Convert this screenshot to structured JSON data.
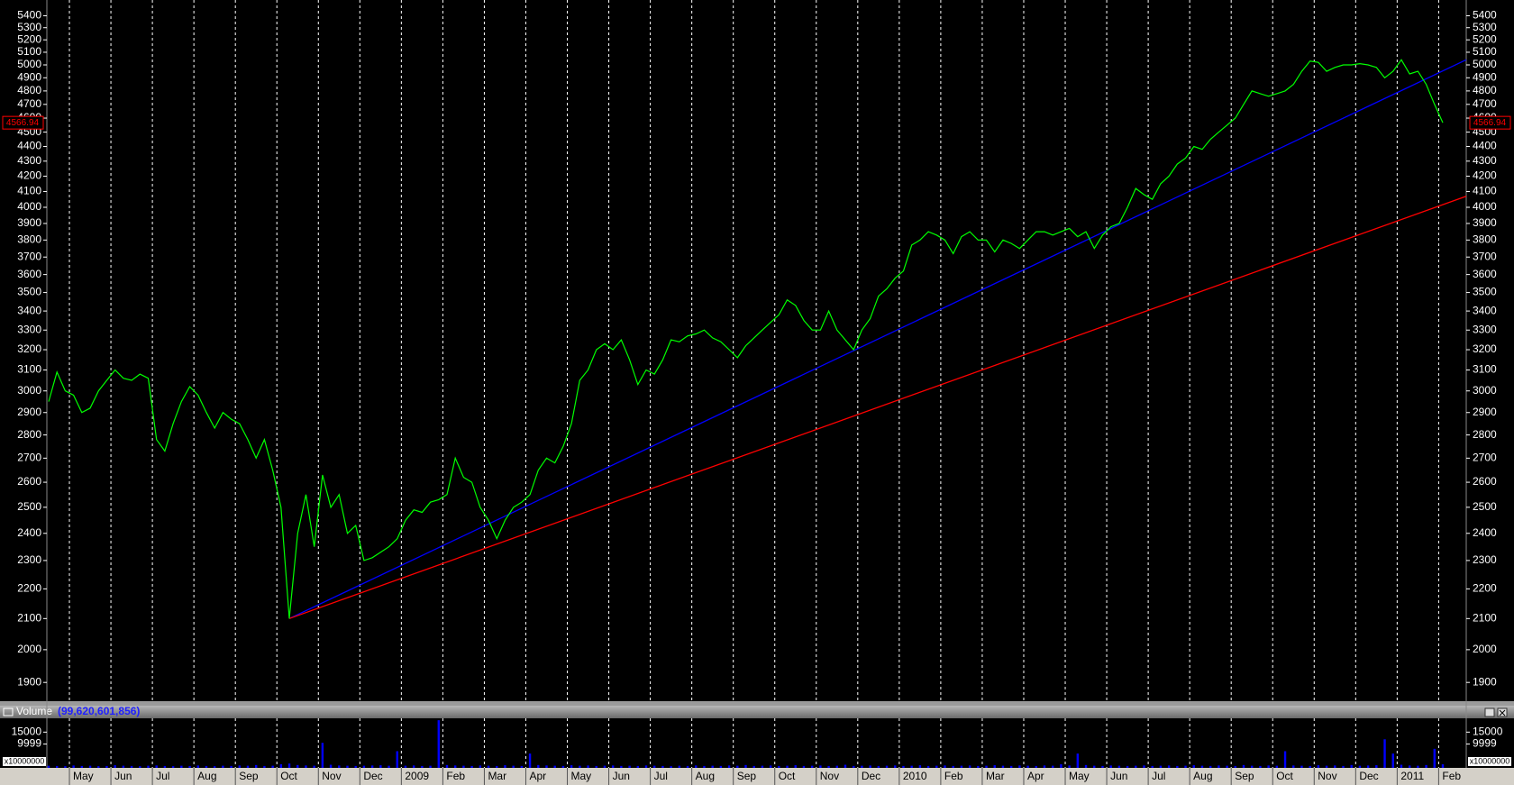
{
  "chart_data": {
    "type": "line",
    "log_scale": true,
    "color": "#00ff00",
    "background": "#000000",
    "categories": [
      null,
      null,
      null,
      "May",
      null,
      null,
      null,
      null,
      "Jun",
      null,
      null,
      null,
      null,
      "Jul",
      null,
      null,
      null,
      null,
      "Aug",
      null,
      null,
      null,
      null,
      "Sep",
      null,
      null,
      null,
      null,
      "Oct",
      null,
      null,
      null,
      null,
      "Nov",
      null,
      null,
      null,
      null,
      "Dec",
      null,
      null,
      null,
      null,
      "2009",
      null,
      null,
      null,
      null,
      "Feb",
      null,
      null,
      null,
      null,
      "Mar",
      null,
      null,
      null,
      null,
      "Apr",
      null,
      null,
      null,
      null,
      "May",
      null,
      null,
      null,
      null,
      "Jun",
      null,
      null,
      null,
      null,
      "Jul",
      null,
      null,
      null,
      null,
      "Aug",
      null,
      null,
      null,
      null,
      "Sep",
      null,
      null,
      null,
      null,
      "Oct",
      null,
      null,
      null,
      null,
      "Nov",
      null,
      null,
      null,
      null,
      "Dec",
      null,
      null,
      null,
      null,
      "2010",
      null,
      null,
      null,
      null,
      "Feb",
      null,
      null,
      null,
      null,
      "Mar",
      null,
      null,
      null,
      null,
      "Apr",
      null,
      null,
      null,
      null,
      "May",
      null,
      null,
      null,
      null,
      "Jun",
      null,
      null,
      null,
      null,
      "Jul",
      null,
      null,
      null,
      null,
      "Aug",
      null,
      null,
      null,
      null,
      "Sep",
      null,
      null,
      null,
      null,
      "Oct",
      null,
      null,
      null,
      null,
      "Nov",
      null,
      null,
      null,
      null,
      "Dec",
      null,
      null,
      null,
      null,
      "2011",
      null,
      null,
      null,
      null,
      "Feb"
    ],
    "values": [
      2950,
      3090,
      3000,
      2980,
      2900,
      2920,
      3000,
      3050,
      3100,
      3060,
      3050,
      3080,
      3060,
      2780,
      2730,
      2850,
      2950,
      3020,
      2980,
      2900,
      2830,
      2900,
      2870,
      2850,
      2780,
      2700,
      2780,
      2650,
      2500,
      2100,
      2400,
      2550,
      2350,
      2630,
      2500,
      2550,
      2400,
      2430,
      2300,
      2310,
      2330,
      2350,
      2380,
      2450,
      2490,
      2480,
      2520,
      2530,
      2550,
      2700,
      2620,
      2600,
      2500,
      2450,
      2380,
      2450,
      2500,
      2520,
      2550,
      2650,
      2700,
      2680,
      2750,
      2850,
      3050,
      3100,
      3200,
      3230,
      3200,
      3250,
      3150,
      3030,
      3100,
      3080,
      3150,
      3250,
      3240,
      3270,
      3280,
      3300,
      3260,
      3240,
      3200,
      3160,
      3220,
      3260,
      3300,
      3340,
      3380,
      3460,
      3430,
      3350,
      3300,
      3300,
      3400,
      3300,
      3250,
      3200,
      3300,
      3360,
      3480,
      3520,
      3580,
      3620,
      3770,
      3800,
      3850,
      3830,
      3800,
      3720,
      3820,
      3850,
      3800,
      3800,
      3730,
      3800,
      3780,
      3750,
      3800,
      3850,
      3850,
      3830,
      3850,
      3870,
      3820,
      3850,
      3750,
      3830,
      3880,
      3900,
      4000,
      4120,
      4080,
      4050,
      4150,
      4200,
      4280,
      4320,
      4400,
      4380,
      4450,
      4500,
      4550,
      4600,
      4700,
      4800,
      4780,
      4760,
      4780,
      4800,
      4850,
      4950,
      5030,
      5020,
      4950,
      4980,
      5000,
      5000,
      5010,
      5000,
      4980,
      4900,
      4950,
      5040,
      4930,
      4950,
      4850,
      4700,
      4566.94
    ],
    "last_label": "4566.94",
    "ylim": [
      1845,
      5535
    ],
    "yticks": [
      1900,
      2000,
      2100,
      2200,
      2300,
      2400,
      2500,
      2600,
      2700,
      2800,
      2900,
      3000,
      3100,
      3200,
      3300,
      3400,
      3500,
      3600,
      3700,
      3800,
      3900,
      4000,
      4100,
      4200,
      4300,
      4400,
      4500,
      4600,
      4700,
      4800,
      4900,
      5000,
      5100,
      5200,
      5300,
      5400
    ],
    "trendlines": [
      {
        "color": "#0000ff",
        "from": 2100,
        "to": 5040
      },
      {
        "color": "#ff0000",
        "from": 2100,
        "to": 4070
      }
    ],
    "volume": {
      "title": "Volume",
      "total": "(99,620,601,856)",
      "color": "#0000ff",
      "unit_label": "x10000000",
      "ylim": [
        0,
        20800
      ],
      "yticks": [
        9999,
        15000
      ],
      "values": [
        900,
        800,
        700,
        1000,
        800,
        900,
        700,
        800,
        1100,
        900,
        800,
        700,
        900,
        1000,
        800,
        700,
        900,
        800,
        1000,
        800,
        700,
        900,
        800,
        1000,
        900,
        1200,
        800,
        900,
        1500,
        1800,
        1200,
        1000,
        900,
        10500,
        1300,
        1000,
        900,
        800,
        900,
        1000,
        1100,
        900,
        7000,
        900,
        1000,
        800,
        900,
        20000,
        1200,
        1000,
        900,
        800,
        1000,
        900,
        800,
        1100,
        900,
        800,
        6000,
        1200,
        1000,
        900,
        800,
        1100,
        900,
        1000,
        800,
        900,
        1000,
        800,
        900,
        800,
        1000,
        900,
        800,
        700,
        900,
        800,
        1000,
        800,
        900,
        800,
        1000,
        900,
        1200,
        800,
        900,
        1000,
        800,
        900,
        1100,
        800,
        900,
        1000,
        800,
        900,
        1300,
        800,
        900,
        1000,
        800,
        900,
        1000,
        800,
        900,
        1100,
        800,
        900,
        1000,
        800,
        900,
        1000,
        800,
        900,
        1100,
        900,
        800,
        1000,
        900,
        800,
        1000,
        900,
        1500,
        1000,
        6000,
        1200,
        900,
        800,
        1000,
        900,
        800,
        900,
        1000,
        800,
        900,
        1000,
        800,
        900,
        1100,
        900,
        800,
        1000,
        900,
        800,
        1200,
        900,
        800,
        1000,
        900,
        7000,
        1000,
        900,
        800,
        1100,
        900,
        1000,
        800,
        1200,
        900,
        1000,
        1100,
        12000,
        6000,
        1300,
        1000,
        900,
        1200,
        8000,
        1500
      ]
    }
  }
}
